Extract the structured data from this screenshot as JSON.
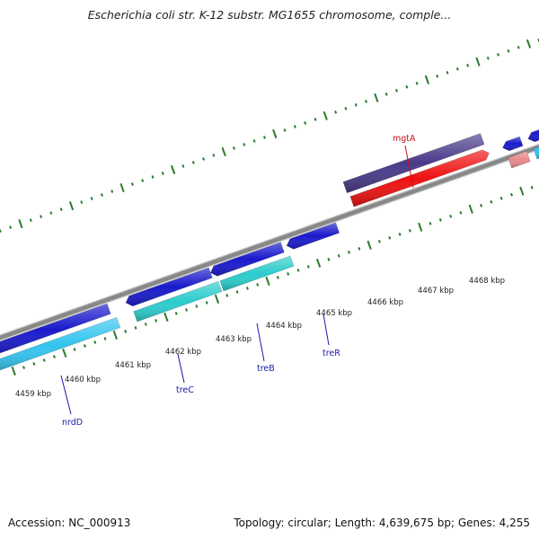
{
  "title": "Escherichia coli str. K-12 substr. MG1655 chromosome, comple...",
  "footer": {
    "accession": "Accession: NC_000913",
    "summary": "Topology: circular; Length: 4,639,675 bp; Genes: 4,255"
  },
  "colors": {
    "backbone": "#888888",
    "tick": "#2a7a2a",
    "cds_blue": "#1a1acc",
    "cds_cyan": "#33c4ee",
    "cds_teal": "#2ccccc",
    "cds_purple": "#4a3a8a",
    "cds_red": "#ee1111",
    "cds_pink": "#e88a8a",
    "label_blue": "#1a1aaa",
    "label_red": "#cc1111"
  },
  "scale_labels": [
    "4459 kbp",
    "4460 kbp",
    "4461 kbp",
    "4462 kbp",
    "4463 kbp",
    "4464 kbp",
    "4465 kbp",
    "4466 kbp",
    "4467 kbp",
    "4468 kbp"
  ],
  "gene_labels": [
    {
      "name": "nrdD",
      "color": "label_blue"
    },
    {
      "name": "treC",
      "color": "label_blue"
    },
    {
      "name": "treB",
      "color": "label_blue"
    },
    {
      "name": "treR",
      "color": "label_blue"
    },
    {
      "name": "mgtA",
      "color": "label_red"
    }
  ]
}
